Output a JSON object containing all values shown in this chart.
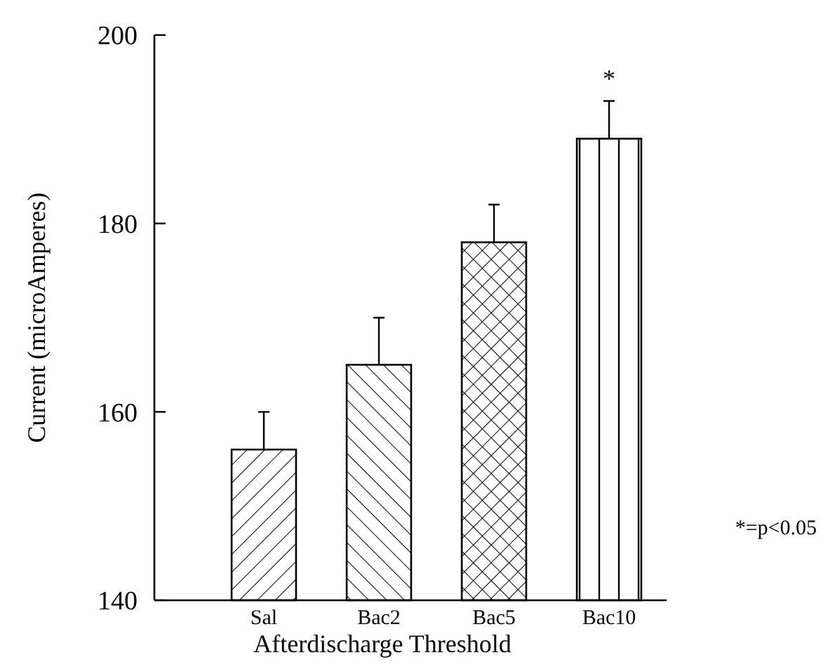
{
  "chart_data": {
    "type": "bar",
    "xlabel": "Afterdischarge Threshold",
    "ylabel": "Current (microAmperes)",
    "categories": [
      "Sal",
      "Bac2",
      "Bac5",
      "Bac10"
    ],
    "values": [
      156,
      165,
      178,
      189
    ],
    "errors": [
      [
        156,
        160
      ],
      [
        165,
        170
      ],
      [
        178,
        182
      ],
      [
        189,
        193
      ]
    ],
    "color": "#000000",
    "ylim": [
      140,
      200
    ],
    "yticks": [
      140,
      160,
      180,
      200
    ],
    "grid": false,
    "annotations": [
      {
        "text": "*",
        "x": "Bac10",
        "y": 193
      },
      "*=p<0.05"
    ]
  }
}
